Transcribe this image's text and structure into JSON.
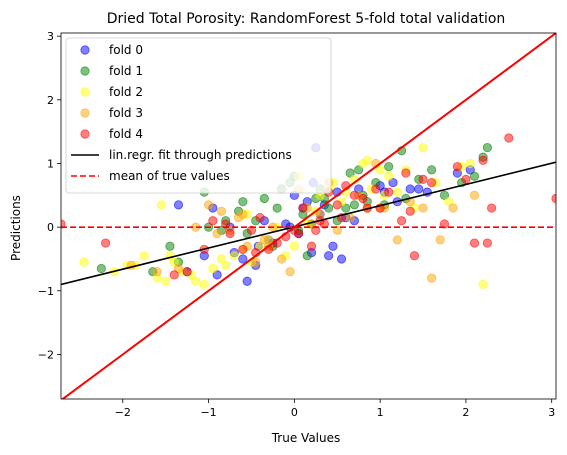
{
  "chart_data": {
    "type": "scatter",
    "title": "Dried Total Porosity: RandomForest 5-fold total validation",
    "xlabel": "True Values",
    "ylabel": "Predictions",
    "xlim": [
      -2.72,
      3.05
    ],
    "ylim": [
      -2.7,
      3.05
    ],
    "xticks": [
      -2,
      -1,
      0,
      1,
      2,
      3
    ],
    "yticks": [
      -2,
      -1,
      0,
      1,
      2,
      3
    ],
    "grid": false,
    "legend_position": "top-left",
    "series": [
      {
        "name": "fold 0",
        "color": "#0000ff",
        "x": [
          -0.75,
          -0.55,
          -0.6,
          -0.42,
          -0.3,
          -0.25,
          -0.1,
          0.1,
          0.15,
          0.25,
          0.3,
          0.35,
          0.5,
          0.6,
          0.75,
          1.0,
          1.05,
          1.15,
          1.2,
          1.35,
          1.45,
          1.55,
          1.9,
          2.05,
          -0.95,
          -0.7,
          -0.9,
          -1.05,
          -1.25,
          -0.05,
          0.2,
          0.4,
          0.45,
          0.55,
          0.7,
          0.05,
          -0.35,
          0.0,
          -0.45,
          0.22,
          -1.35
        ],
        "y": [
          0.0,
          -0.85,
          -0.5,
          -0.3,
          -0.2,
          -0.25,
          0.05,
          0.3,
          0.4,
          1.25,
          0.2,
          0.35,
          0.55,
          0.15,
          0.6,
          0.65,
          0.55,
          0.7,
          0.4,
          0.6,
          0.6,
          0.55,
          0.85,
          0.9,
          0.3,
          -0.4,
          -0.75,
          -0.45,
          -0.7,
          0.0,
          -0.4,
          -0.45,
          -0.3,
          -0.5,
          0.1,
          -0.1,
          0.1,
          0.5,
          -0.6,
          0.7,
          0.35
        ]
      },
      {
        "name": "fold 1",
        "color": "#008000",
        "x": [
          -2.25,
          -1.65,
          -1.45,
          -1.35,
          -1.05,
          -1.0,
          -0.85,
          -0.8,
          -0.65,
          -0.55,
          -0.45,
          -0.35,
          -0.2,
          -0.15,
          -0.05,
          0.0,
          0.05,
          0.1,
          0.2,
          0.25,
          0.35,
          0.4,
          0.5,
          0.6,
          0.65,
          0.75,
          0.8,
          0.85,
          0.95,
          1.05,
          1.1,
          1.25,
          1.3,
          1.45,
          1.75,
          1.95,
          2.1,
          2.2,
          2.25,
          0.3,
          0.7,
          -0.6,
          -0.25,
          0.15,
          1.6
        ],
        "y": [
          -0.65,
          -0.7,
          -0.3,
          -0.55,
          0.55,
          0.0,
          -0.05,
          0.1,
          0.25,
          -0.1,
          0.1,
          0.45,
          0.3,
          0.6,
          0.7,
          0.8,
          -0.05,
          0.2,
          0.05,
          0.45,
          0.45,
          0.3,
          0.1,
          0.3,
          0.85,
          0.9,
          0.5,
          0.4,
          0.7,
          0.35,
          0.95,
          1.2,
          0.45,
          0.75,
          0.5,
          0.7,
          0.8,
          1.1,
          1.25,
          0.6,
          0.35,
          0.4,
          -0.3,
          -0.45,
          0.9
        ]
      },
      {
        "name": "fold 2",
        "color": "#ffff00",
        "x": [
          -2.45,
          -2.1,
          -1.85,
          -1.75,
          -1.6,
          -1.5,
          -1.45,
          -1.4,
          -1.3,
          -1.2,
          -1.15,
          -1.05,
          -0.95,
          -0.85,
          -0.8,
          -0.7,
          -0.6,
          -0.5,
          -0.4,
          -0.3,
          -0.2,
          -0.1,
          0.0,
          0.05,
          0.15,
          0.25,
          0.3,
          0.45,
          0.55,
          0.7,
          0.8,
          0.85,
          0.9,
          1.0,
          1.05,
          1.1,
          1.2,
          1.3,
          1.4,
          1.5,
          1.65,
          1.8,
          1.95,
          2.05,
          2.2,
          -1.55,
          -0.55,
          0.6,
          -1.95,
          0.4
        ],
        "y": [
          -0.55,
          -0.7,
          -0.6,
          -0.45,
          -0.8,
          -0.85,
          -0.45,
          -0.55,
          -0.7,
          -0.75,
          -0.85,
          -0.9,
          -0.65,
          -0.5,
          -0.6,
          -0.45,
          -0.35,
          -0.55,
          -0.3,
          -0.2,
          0.0,
          -0.45,
          -0.3,
          0.8,
          0.05,
          0.25,
          0.5,
          0.7,
          0.4,
          0.75,
          1.0,
          1.05,
          0.6,
          0.9,
          0.5,
          0.8,
          0.55,
          0.9,
          0.3,
          1.25,
          0.7,
          0.4,
          0.95,
          1.0,
          -0.9,
          0.35,
          0.2,
          0.55,
          -0.6,
          0.6
        ]
      },
      {
        "name": "fold 3",
        "color": "#ffa500",
        "x": [
          -1.9,
          -1.6,
          -1.35,
          -1.15,
          -1.0,
          -0.85,
          -0.75,
          -0.65,
          -0.55,
          -0.45,
          -0.35,
          -0.25,
          -0.15,
          -0.05,
          0.05,
          0.15,
          0.3,
          0.4,
          0.5,
          0.65,
          0.75,
          0.85,
          0.95,
          1.05,
          1.2,
          1.35,
          1.5,
          1.6,
          1.85,
          2.1,
          -0.9,
          -0.6,
          0.2,
          -0.3,
          1.0,
          1.7
        ],
        "y": [
          -0.6,
          -0.7,
          -0.65,
          0.0,
          0.35,
          0.25,
          -0.05,
          0.15,
          -0.3,
          -0.55,
          -0.2,
          0.0,
          -0.5,
          -0.7,
          0.6,
          0.3,
          0.2,
          0.7,
          -0.05,
          0.15,
          0.5,
          0.3,
          1.0,
          0.3,
          -0.2,
          0.4,
          0.3,
          -0.8,
          0.3,
          0.5,
          -0.1,
          0.2,
          0.05,
          -0.3,
          0.3,
          -0.2
        ]
      },
      {
        "name": "fold 4",
        "color": "#ff0000",
        "x": [
          -2.72,
          -2.2,
          -1.4,
          -1.25,
          -1.05,
          -0.95,
          -0.8,
          -0.75,
          -0.6,
          -0.5,
          -0.45,
          -0.3,
          -0.2,
          -0.1,
          0.0,
          0.05,
          0.1,
          0.2,
          0.3,
          0.35,
          0.4,
          0.5,
          0.55,
          0.6,
          0.7,
          0.8,
          0.85,
          0.95,
          1.0,
          1.1,
          1.25,
          1.3,
          1.4,
          1.5,
          1.6,
          1.75,
          1.9,
          2.0,
          2.1,
          2.25,
          2.3,
          2.5,
          3.05,
          1.35,
          0.25,
          -0.4,
          2.2
        ],
        "y": [
          0.05,
          -0.25,
          -0.75,
          -0.7,
          -0.35,
          0.1,
          0.05,
          -0.1,
          -0.35,
          -0.05,
          -0.4,
          -0.35,
          -0.25,
          -0.15,
          -0.05,
          -0.1,
          0.3,
          -0.3,
          0.1,
          0.05,
          0.55,
          0.35,
          0.15,
          0.65,
          0.5,
          0.45,
          0.3,
          0.6,
          0.3,
          0.55,
          0.1,
          0.85,
          -0.45,
          0.75,
          0.7,
          0.05,
          0.95,
          0.75,
          -0.25,
          -0.25,
          0.3,
          1.4,
          0.45,
          0.25,
          -0.05,
          0.15,
          1.05
        ]
      }
    ],
    "lines": [
      {
        "name": "lin.regr. fit through predictions",
        "color": "#000000",
        "style": "solid",
        "x": [
          -2.72,
          3.05
        ],
        "y": [
          -0.9,
          1.02
        ]
      },
      {
        "name": "mean of true values",
        "color": "#ff0000",
        "style": "dashed",
        "x": [
          -2.72,
          3.05
        ],
        "y": [
          0.0,
          0.0
        ]
      },
      {
        "name": "",
        "color": "#ff0000",
        "style": "solid",
        "x": [
          -2.72,
          3.05
        ],
        "y": [
          -2.72,
          3.05
        ]
      }
    ],
    "legend": [
      {
        "label": "fold 0",
        "kind": "marker",
        "color": "#0000ff"
      },
      {
        "label": "fold 1",
        "kind": "marker",
        "color": "#008000"
      },
      {
        "label": "fold 2",
        "kind": "marker",
        "color": "#ffff00"
      },
      {
        "label": "fold 3",
        "kind": "marker",
        "color": "#ffa500"
      },
      {
        "label": "fold 4",
        "kind": "marker",
        "color": "#ff0000"
      },
      {
        "label": "lin.regr. fit through predictions",
        "kind": "line",
        "color": "#000000",
        "style": "solid"
      },
      {
        "label": "mean of true values",
        "kind": "line",
        "color": "#ff0000",
        "style": "dashed"
      }
    ]
  }
}
